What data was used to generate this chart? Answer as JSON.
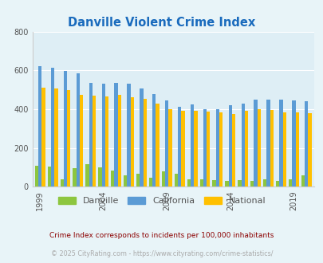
{
  "title": "Danville Violent Crime Index",
  "title_color": "#1a6bbd",
  "background_color": "#e8f4f8",
  "plot_bg_color": "#deeef5",
  "years": [
    1999,
    2000,
    2001,
    2002,
    2003,
    2004,
    2005,
    2006,
    2007,
    2008,
    2009,
    2010,
    2011,
    2012,
    2013,
    2014,
    2015,
    2016,
    2017,
    2018,
    2019,
    2020
  ],
  "danville": [
    110,
    105,
    38,
    95,
    115,
    100,
    82,
    57,
    65,
    48,
    80,
    65,
    38,
    40,
    35,
    30,
    35,
    28,
    38,
    28,
    40,
    58
  ],
  "california": [
    622,
    615,
    595,
    585,
    535,
    530,
    535,
    530,
    508,
    478,
    445,
    412,
    423,
    400,
    398,
    420,
    430,
    449,
    451,
    449,
    446,
    442
  ],
  "national": [
    510,
    508,
    500,
    475,
    470,
    465,
    475,
    462,
    455,
    430,
    400,
    390,
    390,
    387,
    383,
    376,
    390,
    400,
    395,
    385,
    383,
    380
  ],
  "ylim": [
    0,
    800
  ],
  "yticks": [
    0,
    200,
    400,
    600,
    800
  ],
  "xtick_years": [
    1999,
    2004,
    2009,
    2014,
    2019
  ],
  "bar_width": 0.27,
  "danville_color": "#8dc63f",
  "california_color": "#5b9bd5",
  "national_color": "#ffc000",
  "legend_labels": [
    "Danville",
    "California",
    "National"
  ],
  "footnote": "Crime Index corresponds to incidents per 100,000 inhabitants",
  "copyright": "© 2025 CityRating.com - https://www.cityrating.com/crime-statistics/",
  "footnote_color": "#8b0000",
  "copyright_color": "#aaaaaa"
}
